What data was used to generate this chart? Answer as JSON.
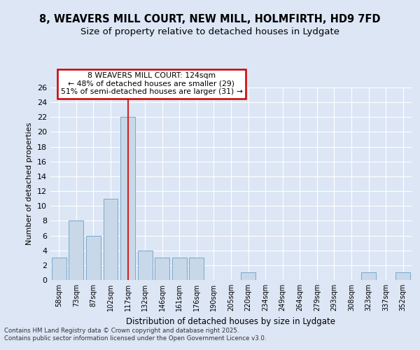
{
  "title1": "8, WEAVERS MILL COURT, NEW MILL, HOLMFIRTH, HD9 7FD",
  "title2": "Size of property relative to detached houses in Lydgate",
  "xlabel": "Distribution of detached houses by size in Lydgate",
  "ylabel": "Number of detached properties",
  "categories": [
    "58sqm",
    "73sqm",
    "87sqm",
    "102sqm",
    "117sqm",
    "132sqm",
    "146sqm",
    "161sqm",
    "176sqm",
    "190sqm",
    "205sqm",
    "220sqm",
    "234sqm",
    "249sqm",
    "264sqm",
    "279sqm",
    "293sqm",
    "308sqm",
    "323sqm",
    "337sqm",
    "352sqm"
  ],
  "values": [
    3,
    8,
    6,
    11,
    22,
    4,
    3,
    3,
    3,
    0,
    0,
    1,
    0,
    0,
    0,
    0,
    0,
    0,
    1,
    0,
    1
  ],
  "bar_color": "#c8d8e8",
  "bar_edge_color": "#7aa8cc",
  "highlight_index": 4,
  "highlight_line_color": "#cc2222",
  "annotation_text": "8 WEAVERS MILL COURT: 124sqm\n← 48% of detached houses are smaller (29)\n51% of semi-detached houses are larger (31) →",
  "annotation_box_color": "#ffffff",
  "annotation_box_edge": "#cc0000",
  "ylim": [
    0,
    26
  ],
  "yticks": [
    0,
    2,
    4,
    6,
    8,
    10,
    12,
    14,
    16,
    18,
    20,
    22,
    24,
    26
  ],
  "bg_color": "#dce6f5",
  "plot_bg_color": "#dce6f5",
  "grid_color": "#ffffff",
  "footer": "Contains HM Land Registry data © Crown copyright and database right 2025.\nContains public sector information licensed under the Open Government Licence v3.0.",
  "title_fontsize": 10.5,
  "subtitle_fontsize": 9.5
}
